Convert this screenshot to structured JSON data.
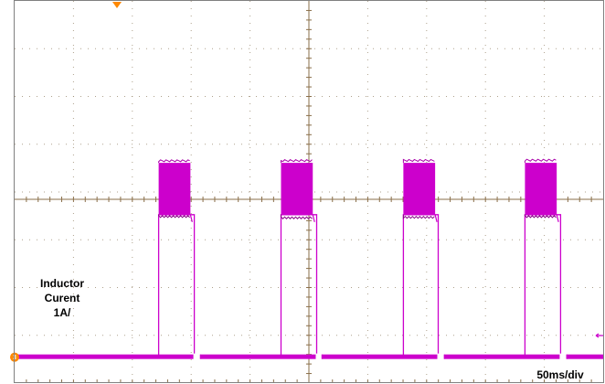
{
  "chart_data": {
    "type": "line",
    "title": "",
    "xlabel": "",
    "ylabel": "",
    "grid": true,
    "divisions": {
      "x": 10,
      "y": 8
    },
    "series": [
      {
        "label_lines": [
          "Inductor",
          "Curent",
          "1A/"
        ],
        "color": "#cc00cc",
        "x_unit": "ms",
        "y_unit": "A",
        "baseline_value": 0,
        "peak_value": 3.0,
        "step_value": 2.2,
        "period_ms": 158,
        "x": [
          0,
          182,
          186,
          186,
          227,
          232,
          232,
          240,
          240,
          340,
          344,
          344,
          385,
          390,
          390,
          397,
          397,
          498,
          502,
          502,
          543,
          547,
          547,
          555,
          555,
          655,
          659,
          659,
          700,
          705,
          705,
          713,
          713,
          760
        ],
        "y": [
          0,
          0,
          0,
          2.2,
          2.2,
          2.2,
          0,
          0,
          0,
          0,
          0,
          2.2,
          2.2,
          2.2,
          0,
          0,
          0,
          0,
          0,
          2.2,
          2.2,
          2.2,
          0,
          0,
          0,
          0,
          0,
          2.2,
          2.2,
          2.2,
          0,
          0,
          0,
          0
        ],
        "bursts": [
          {
            "start_ms": 186,
            "end_ms": 227
          },
          {
            "start_ms": 344,
            "end_ms": 385
          },
          {
            "start_ms": 502,
            "end_ms": 543
          },
          {
            "start_ms": 659,
            "end_ms": 700
          }
        ],
        "gaps": [
          {
            "start_ms": 232,
            "end_ms": 240
          },
          {
            "start_ms": 390,
            "end_ms": 397
          },
          {
            "start_ms": 547,
            "end_ms": 555
          },
          {
            "start_ms": 705,
            "end_ms": 713
          }
        ]
      }
    ],
    "xlim": [
      0,
      760
    ],
    "ylim": [
      -0.4,
      5.5
    ]
  },
  "labels": {
    "signal": [
      "Inductor",
      "Curent",
      "1A/"
    ],
    "timebase": "50ms/div",
    "channel_marker": "3"
  },
  "colors": {
    "trace": "#cc00cc",
    "grid_major": "#8a6f4a",
    "grid_minor": "#9a8a70",
    "trigger": "#ff8800",
    "frame": "#808080"
  }
}
